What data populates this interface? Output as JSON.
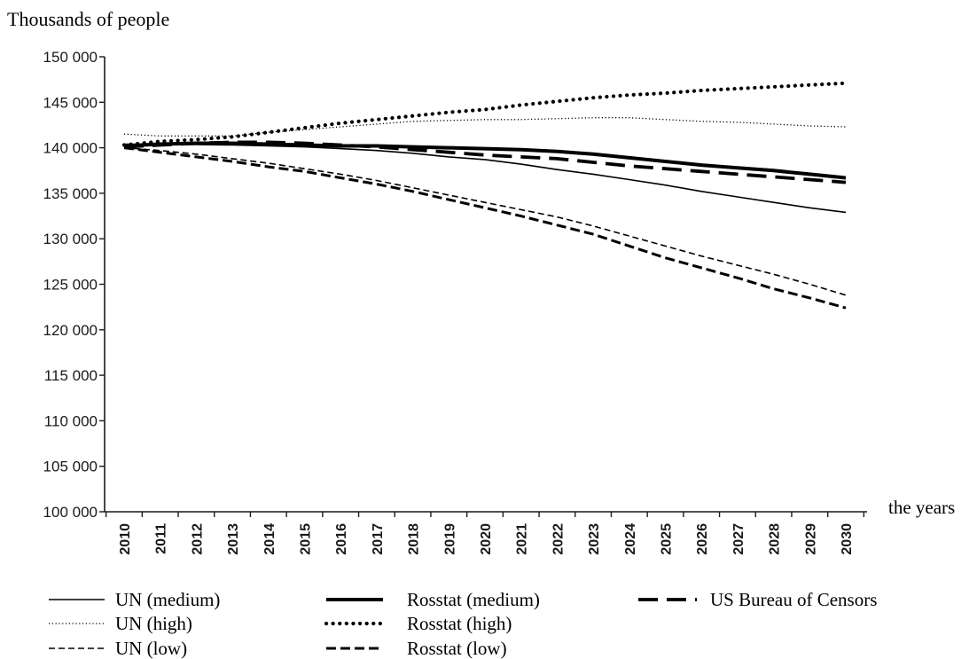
{
  "chart_data": {
    "type": "line",
    "title": "",
    "ylabel": "Thousands of people",
    "xlabel": "the years",
    "ylim": [
      100000,
      150000
    ],
    "y_ticks": [
      100000,
      105000,
      110000,
      115000,
      120000,
      125000,
      130000,
      135000,
      140000,
      145000,
      150000
    ],
    "y_tick_labels": [
      "100 000",
      "105 000",
      "110 000",
      "115 000",
      "120 000",
      "125 000",
      "130 000",
      "135 000",
      "140 000",
      "145 000",
      "150 000"
    ],
    "x": [
      "2010",
      "2011",
      "2012",
      "2013",
      "2014",
      "2015",
      "2016",
      "2017",
      "2018",
      "2019",
      "2020",
      "2021",
      "2022",
      "2023",
      "2024",
      "2025",
      "2026",
      "2027",
      "2028",
      "2029",
      "2030"
    ],
    "grid": false,
    "legend_position": "bottom",
    "series": [
      {
        "name": "UN (medium)",
        "style": "thin-solid",
        "values": [
          140400,
          140400,
          140350,
          140300,
          140200,
          140100,
          139900,
          139700,
          139400,
          139000,
          138700,
          138200,
          137600,
          137100,
          136500,
          135900,
          135200,
          134600,
          134000,
          133400,
          132900
        ]
      },
      {
        "name": "UN (high)",
        "style": "fine-dotted",
        "values": [
          141500,
          141300,
          141300,
          141300,
          141700,
          142000,
          142300,
          142600,
          142900,
          143000,
          143100,
          143100,
          143200,
          143300,
          143300,
          143100,
          142900,
          142800,
          142600,
          142400,
          142300
        ]
      },
      {
        "name": "UN (low)",
        "style": "thin-dashed",
        "values": [
          140000,
          139700,
          139300,
          138800,
          138300,
          137700,
          137100,
          136400,
          135600,
          134800,
          134000,
          133200,
          132400,
          131400,
          130300,
          129200,
          128100,
          127100,
          126100,
          125000,
          123800
        ]
      },
      {
        "name": "Rosstat (medium)",
        "style": "thick-solid",
        "values": [
          140200,
          140400,
          140500,
          140500,
          140400,
          140300,
          140200,
          140200,
          140100,
          140000,
          139900,
          139800,
          139600,
          139300,
          138900,
          138500,
          138100,
          137800,
          137500,
          137100,
          136700
        ]
      },
      {
        "name": "Rosstat (high)",
        "style": "bold-dotted",
        "values": [
          140300,
          140700,
          140900,
          141200,
          141700,
          142200,
          142700,
          143100,
          143500,
          143900,
          144200,
          144700,
          145100,
          145500,
          145800,
          146000,
          146300,
          146500,
          146700,
          146900,
          147100
        ]
      },
      {
        "name": "Rosstat (low)",
        "style": "bold-dashed",
        "values": [
          140000,
          139500,
          139000,
          138500,
          137900,
          137400,
          136700,
          136000,
          135200,
          134300,
          133400,
          132500,
          131500,
          130500,
          129200,
          127900,
          126800,
          125700,
          124500,
          123500,
          122400
        ]
      },
      {
        "name": "US Bureau of Censors",
        "style": "long-dashed",
        "values": [
          140100,
          140300,
          140500,
          140600,
          140600,
          140500,
          140300,
          140100,
          139800,
          139500,
          139200,
          139000,
          138800,
          138400,
          138000,
          137700,
          137400,
          137100,
          136800,
          136500,
          136200
        ]
      }
    ]
  }
}
